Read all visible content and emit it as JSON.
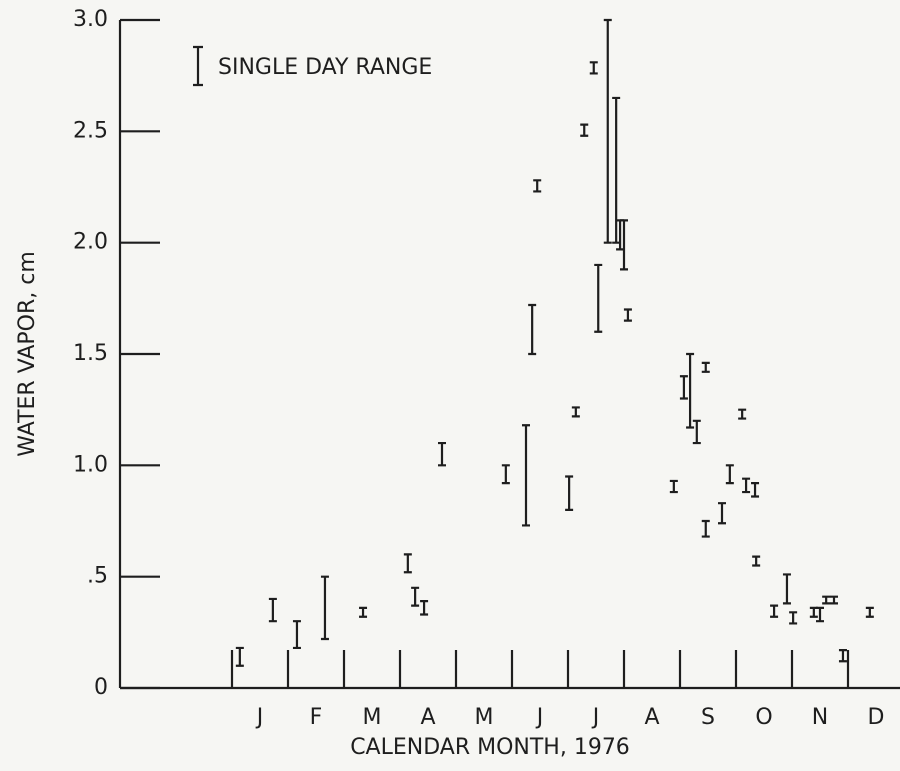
{
  "chart_data": {
    "type": "range",
    "xlabel": "CALENDAR MONTH, 1976",
    "ylabel": "WATER VAPOR, cm",
    "months": [
      "J",
      "F",
      "M",
      "A",
      "M",
      "J",
      "J",
      "A",
      "S",
      "O",
      "N",
      "D"
    ],
    "xlim": [
      -2,
      12
    ],
    "xticks": [
      0,
      1,
      2,
      3,
      4,
      5,
      6,
      7,
      8,
      9,
      10,
      11
    ],
    "ylim": [
      0,
      3
    ],
    "yticks": [
      {
        "value": 0,
        "label": "0"
      },
      {
        "value": 0.5,
        "label": ".5"
      },
      {
        "value": 1,
        "label": "1.0"
      },
      1.5,
      {
        "value": 2,
        "label": "2.0"
      },
      2.5,
      {
        "value": 3,
        "label": "3.0"
      }
    ],
    "series": [
      {
        "name": "SINGLE DAY RANGE",
        "color": "#1e1e1e",
        "x": [
          0.14,
          0.73,
          1.16,
          1.66,
          2.34,
          3.14,
          3.27,
          3.43,
          3.75,
          4.89,
          5.25,
          5.36,
          5.45,
          6.02,
          6.14,
          6.29,
          6.46,
          6.54,
          6.71,
          6.86,
          6.93,
          7.0,
          7.07,
          7.89,
          8.07,
          8.18,
          8.3,
          8.46,
          8.46,
          8.75,
          8.89,
          9.11,
          9.18,
          9.34,
          9.36,
          9.68,
          9.91,
          10.02,
          10.39,
          10.5,
          10.61,
          10.75,
          10.91,
          11.39
        ],
        "low": [
          0.1,
          0.3,
          0.18,
          0.22,
          0.32,
          0.52,
          0.37,
          0.33,
          1.0,
          0.92,
          0.73,
          1.5,
          2.23,
          0.8,
          1.22,
          2.48,
          2.76,
          1.6,
          2.0,
          2.0,
          1.97,
          1.88,
          1.65,
          0.88,
          1.3,
          1.17,
          1.1,
          1.42,
          0.68,
          0.74,
          0.92,
          1.21,
          0.88,
          0.86,
          0.55,
          0.32,
          0.38,
          0.29,
          0.32,
          0.3,
          0.38,
          0.38,
          0.12,
          0.32
        ],
        "high": [
          0.18,
          0.4,
          0.3,
          0.5,
          0.36,
          0.6,
          0.45,
          0.39,
          1.1,
          1.0,
          1.18,
          1.72,
          2.28,
          0.95,
          1.26,
          2.53,
          2.81,
          1.9,
          3.0,
          2.65,
          2.1,
          2.1,
          1.7,
          0.93,
          1.4,
          1.5,
          1.2,
          1.46,
          0.75,
          0.83,
          1.0,
          1.25,
          0.94,
          0.92,
          0.59,
          0.37,
          0.51,
          0.34,
          0.36,
          0.36,
          0.41,
          0.41,
          0.17,
          0.36
        ]
      }
    ]
  }
}
